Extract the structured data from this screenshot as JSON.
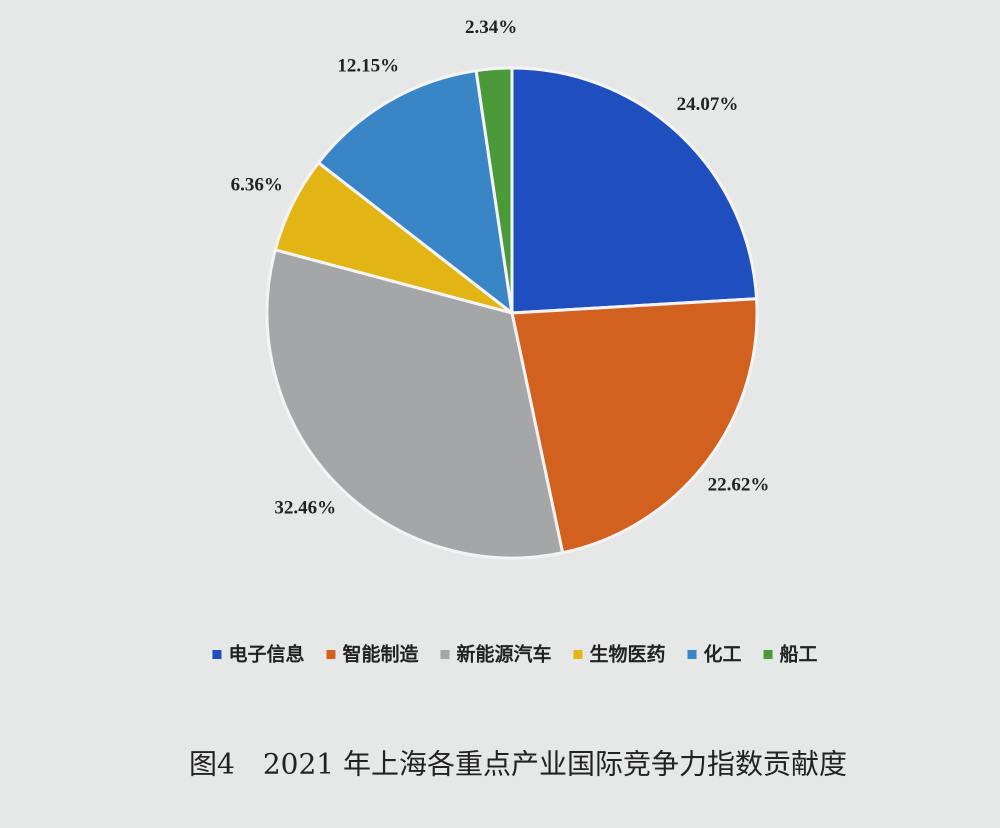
{
  "chart_data": {
    "type": "pie",
    "title": "图4　2021 年上海各重点产业国际竞争力指数贡献度",
    "categories": [
      "电子信息",
      "智能制造",
      "新能源汽车",
      "生物医药",
      "化工",
      "船工"
    ],
    "values": [
      24.07,
      22.62,
      32.46,
      6.36,
      12.15,
      2.34
    ],
    "value_labels": [
      "24.07%",
      "22.62%",
      "32.46%",
      "6.36%",
      "12.15%",
      "2.34%"
    ],
    "colors": [
      "#1f4fbf",
      "#d2601e",
      "#a4a6a7",
      "#e3b514",
      "#3a85c6",
      "#4b9a3a"
    ],
    "legend": "bottom"
  }
}
